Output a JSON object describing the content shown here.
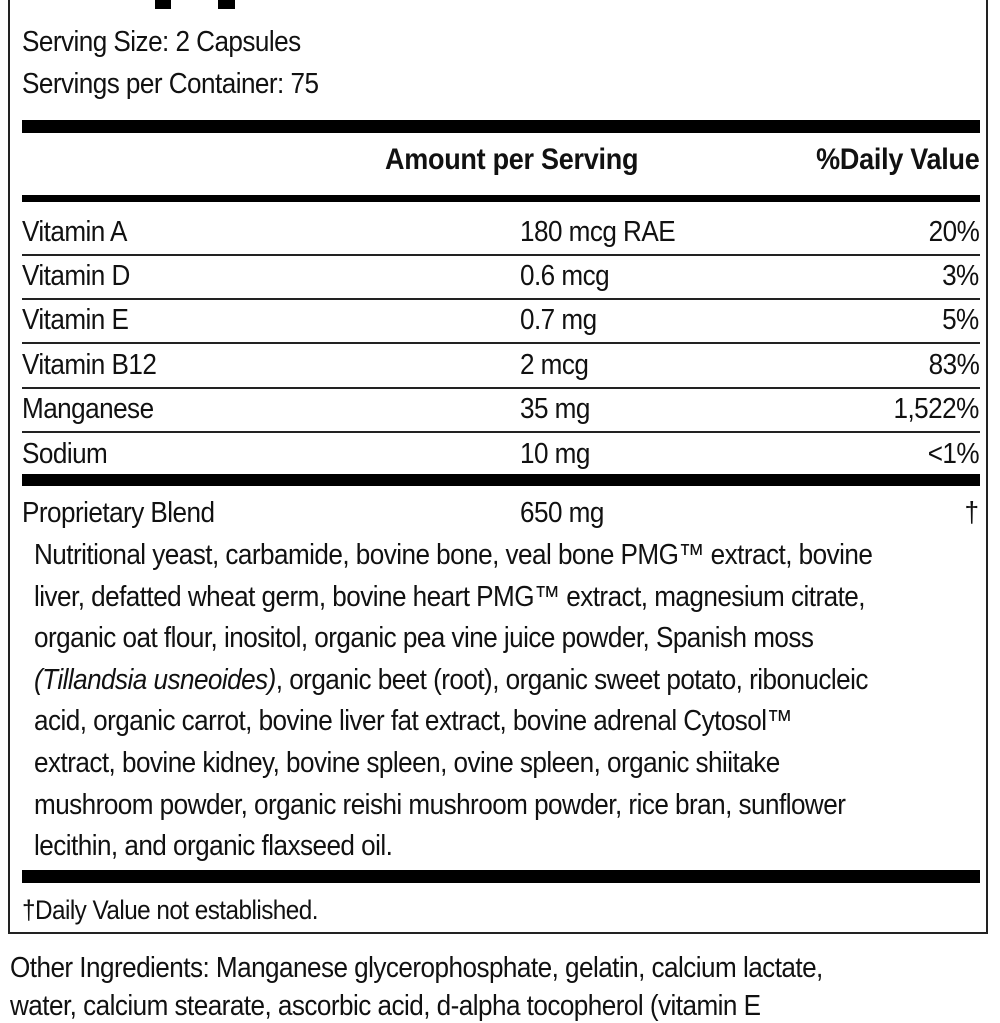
{
  "serving": {
    "size": "Serving Size: 2 Capsules",
    "per_container": "Servings per Container: 75"
  },
  "header": {
    "amount": "Amount per Serving",
    "dv": "%Daily Value"
  },
  "rows": [
    {
      "name": "Vitamin A",
      "amount": "180 mcg RAE",
      "dv": "20%"
    },
    {
      "name": "Vitamin D",
      "amount": "0.6 mcg",
      "dv": "3%"
    },
    {
      "name": "Vitamin E",
      "amount": "0.7 mg",
      "dv": "5%"
    },
    {
      "name": "Vitamin B12",
      "amount": "2 mcg",
      "dv": "83%"
    },
    {
      "name": "Manganese",
      "amount": "35 mg",
      "dv": "1,522%"
    },
    {
      "name": "Sodium",
      "amount": "10 mg",
      "dv": "<1%"
    }
  ],
  "blend": {
    "name": "Proprietary Blend",
    "amount": "650 mg",
    "dv": "†",
    "lines": [
      "Nutritional yeast, carbamide, bovine bone, veal bone PMG™ extract, bovine",
      "liver, defatted wheat germ, bovine heart PMG™ extract, magnesium citrate,",
      "organic oat flour, inositol, organic pea vine juice powder, Spanish moss",
      "(Tillandsia usneoides)",
      ", organic beet (root), organic sweet potato, ribonucleic",
      "acid, organic carrot, bovine liver fat extract, bovine adrenal Cytosol™",
      "extract, bovine kidney, bovine spleen, ovine spleen, organic shiitake",
      "mushroom powder, organic reishi mushroom powder, rice bran, sunflower",
      "lecithin, and organic flaxseed oil."
    ]
  },
  "footnote": "†Daily Value not established.",
  "other_ingredients": {
    "line1": "Other Ingredients: Manganese glycerophosphate, gelatin, calcium lactate,",
    "line2": "water, calcium stearate, ascorbic acid, d-alpha tocopherol (vitamin E"
  }
}
